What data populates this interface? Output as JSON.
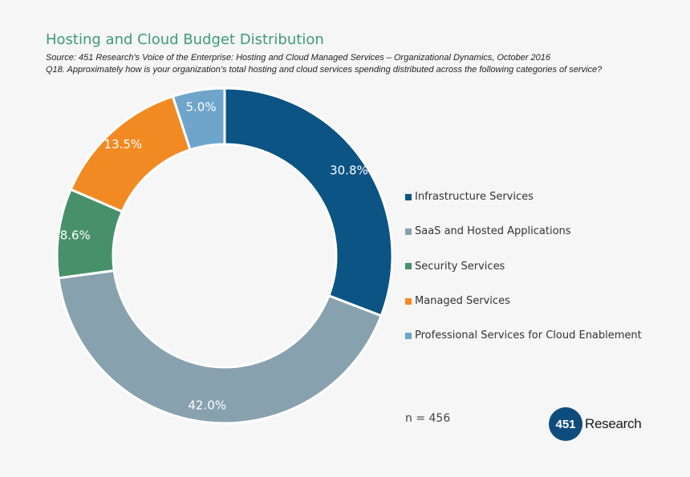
{
  "title": "Hosting and Cloud Budget Distribution",
  "source": "Source: 451 Research's Voice of the Enterprise: Hosting and Cloud Managed Services – Organizational Dynamics, October 2016",
  "question": "Q18. Approximately how is your organization's total hosting and cloud services spending distributed across the following categories of service?",
  "n_label": "n = 456",
  "logo": {
    "number": "451",
    "text": "Research"
  },
  "chart_data": {
    "type": "pie",
    "donut": true,
    "title": "Hosting and Cloud Budget Distribution",
    "legend_position": "right",
    "slices": [
      {
        "name": "Infrastructure Services",
        "value": 30.8,
        "label": "30.8%",
        "color": "#0b5483"
      },
      {
        "name": "SaaS and Hosted Applications",
        "value": 42.0,
        "label": "42.0%",
        "color": "#88a1ae"
      },
      {
        "name": "Security Services",
        "value": 8.6,
        "label": "8.6%",
        "color": "#48906a"
      },
      {
        "name": "Managed Services",
        "value": 13.5,
        "label": "13.5%",
        "color": "#f28a23"
      },
      {
        "name": "Professional Services for Cloud Enablement",
        "value": 5.0,
        "label": "5.0%",
        "color": "#6fa5cb"
      }
    ]
  }
}
